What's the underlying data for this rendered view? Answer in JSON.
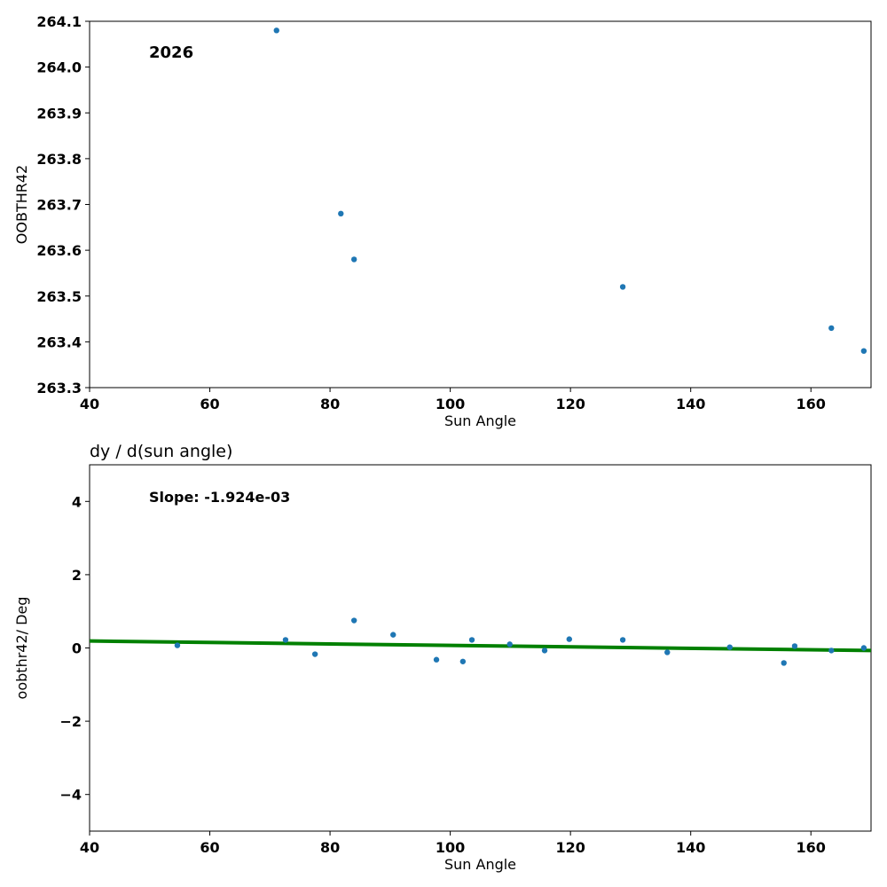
{
  "chart_data": [
    {
      "type": "scatter",
      "title": "",
      "annotation": "2026",
      "xlabel": "Sun Angle",
      "ylabel": "OOBTHR42",
      "xlim": [
        40,
        170
      ],
      "ylim": [
        263.3,
        264.1
      ],
      "xticks": [
        40,
        60,
        80,
        100,
        120,
        140,
        160
      ],
      "yticks": [
        263.3,
        263.4,
        263.5,
        263.6,
        263.7,
        263.8,
        263.9,
        264.0,
        264.1
      ],
      "ytick_labels": [
        "263.3",
        "263.4",
        "263.5",
        "263.6",
        "263.7",
        "263.8",
        "263.9",
        "264.0",
        "264.1"
      ],
      "point_color": "#1f77b4",
      "x": [
        71.1,
        81.8,
        84.0,
        128.7,
        163.4,
        168.8
      ],
      "y": [
        264.08,
        263.68,
        263.58,
        263.52,
        263.43,
        263.38
      ]
    },
    {
      "type": "scatter",
      "title": "dy / d(sun angle)",
      "annotation": "Slope: -1.924e-03",
      "xlabel": "Sun Angle",
      "ylabel": "oobthr42/ Deg",
      "xlim": [
        40,
        170
      ],
      "ylim": [
        -5,
        5
      ],
      "xticks": [
        40,
        60,
        80,
        100,
        120,
        140,
        160
      ],
      "yticks": [
        -4,
        -2,
        0,
        2,
        4
      ],
      "ytick_labels": [
        "−4",
        "−2",
        "0",
        "2",
        "4"
      ],
      "point_color": "#1f77b4",
      "line_color": "#008000",
      "x": [
        54.6,
        72.6,
        77.5,
        84.0,
        90.5,
        97.7,
        102.1,
        103.6,
        109.9,
        115.7,
        119.8,
        128.7,
        136.1,
        146.5,
        155.5,
        157.3,
        163.4,
        168.8
      ],
      "y": [
        0.07,
        0.22,
        -0.17,
        0.75,
        0.36,
        -0.32,
        -0.37,
        0.22,
        0.1,
        -0.07,
        0.24,
        0.22,
        -0.12,
        0.02,
        -0.41,
        0.05,
        -0.07,
        0.0
      ],
      "fit_line": {
        "x": [
          40,
          170
        ],
        "y": [
          0.19,
          -0.07
        ]
      }
    }
  ]
}
